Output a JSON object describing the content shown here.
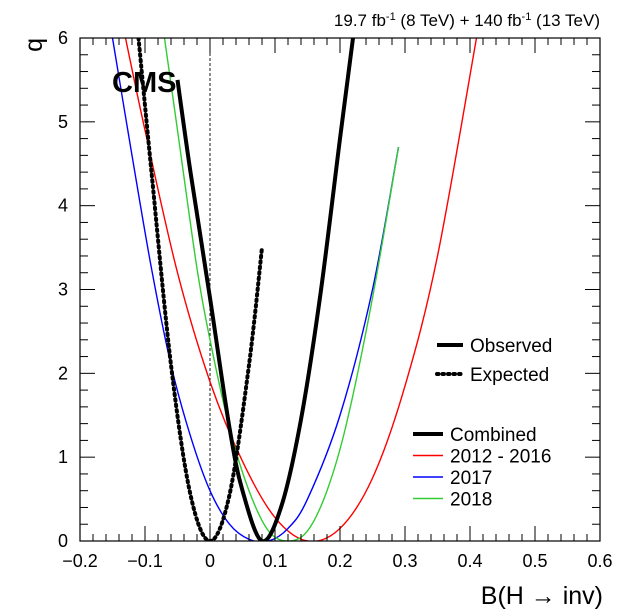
{
  "chart_data": {
    "type": "line",
    "lumi_label": {
      "part1": "19.7 fb",
      "sup1": "-1",
      "part2": " (8 TeV) + 140 fb",
      "sup2": "-1",
      "part3": " (13 TeV)"
    },
    "experiment_label": "CMS",
    "xlabel": "B(H → inv)",
    "ylabel": "q",
    "xlim": [
      -0.2,
      0.6
    ],
    "ylim": [
      0,
      6
    ],
    "x_ticks": [
      "−0.2",
      "−0.1",
      "0",
      "0.1",
      "0.2",
      "0.3",
      "0.4",
      "0.5",
      "0.6"
    ],
    "x_tick_values": [
      -0.2,
      -0.1,
      0,
      0.1,
      0.2,
      0.3,
      0.4,
      0.5,
      0.6
    ],
    "y_ticks": [
      "0",
      "1",
      "2",
      "3",
      "4",
      "5",
      "6"
    ],
    "y_tick_values": [
      0,
      1,
      2,
      3,
      4,
      5,
      6
    ],
    "legend_style": [
      {
        "label": "Observed",
        "dash": "solid"
      },
      {
        "label": "Expected",
        "dash": "dotted"
      }
    ],
    "series": [
      {
        "name": "Combined",
        "color": "#000000",
        "width": "thick",
        "observed": {
          "x": [
            -0.05,
            -0.03,
            0.0,
            0.03,
            0.05,
            0.08,
            0.11,
            0.14,
            0.17,
            0.2,
            0.22
          ],
          "y": [
            5.5,
            4.4,
            2.9,
            1.35,
            0.6,
            0.0,
            0.42,
            1.45,
            2.95,
            4.8,
            6.0
          ]
        },
        "expected": {
          "x": [
            -0.11,
            -0.09,
            -0.06,
            -0.03,
            0.0,
            0.03,
            0.06,
            0.08
          ],
          "y": [
            6.0,
            4.4,
            2.1,
            0.55,
            0.0,
            0.55,
            2.1,
            3.5
          ]
        }
      },
      {
        "name": "2012 - 2016",
        "color": "#ff0000",
        "width": "thin",
        "observed": {
          "x": [
            -0.13,
            -0.1,
            -0.05,
            0.0,
            0.05,
            0.1,
            0.15,
            0.2,
            0.25,
            0.3,
            0.35,
            0.41
          ],
          "y": [
            6.0,
            4.9,
            3.2,
            1.9,
            0.95,
            0.28,
            0.0,
            0.15,
            0.75,
            1.85,
            3.4,
            6.0
          ]
        }
      },
      {
        "name": "2017",
        "color": "#0000ff",
        "width": "thin",
        "observed": {
          "x": [
            -0.15,
            -0.12,
            -0.09,
            -0.06,
            -0.03,
            0.0,
            0.03,
            0.06,
            0.09,
            0.12,
            0.15,
            0.2,
            0.25,
            0.29
          ],
          "y": [
            6.0,
            4.6,
            3.25,
            2.1,
            1.25,
            0.6,
            0.2,
            0.02,
            0.0,
            0.15,
            0.5,
            1.5,
            3.0,
            4.7
          ]
        }
      },
      {
        "name": "2018",
        "color": "#33cc33",
        "width": "thin",
        "observed": {
          "x": [
            -0.07,
            -0.05,
            -0.02,
            0.0,
            0.03,
            0.06,
            0.09,
            0.12,
            0.15,
            0.18,
            0.21,
            0.25,
            0.29
          ],
          "y": [
            6.0,
            4.9,
            3.25,
            2.4,
            1.35,
            0.6,
            0.12,
            0.0,
            0.12,
            0.6,
            1.4,
            2.9,
            4.7
          ]
        }
      }
    ],
    "reference_line_x": 0
  }
}
